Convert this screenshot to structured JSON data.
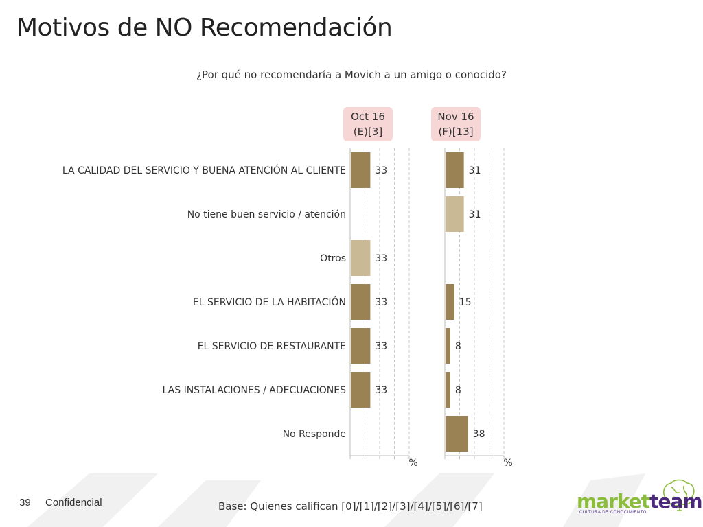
{
  "title": "Motivos de NO Recomendación",
  "question": "¿Por qué no recomendaría a Movich a un amigo o conocido?",
  "periods": [
    {
      "label": "Oct 16",
      "base": "(E)[3]"
    },
    {
      "label": "Nov 16",
      "base": "(F)[13]"
    }
  ],
  "chart_data": {
    "type": "bar",
    "orientation": "horizontal",
    "categories": [
      "LA CALIDAD DEL SERVICIO Y BUENA ATENCIÓN AL CLIENTE",
      "No tiene buen servicio / atención",
      "Otros",
      "EL SERVICIO DE LA HABITACIÓN",
      "EL SERVICIO DE RESTAURANTE",
      "LAS INSTALACIONES / ADECUACIONES",
      "No Responde"
    ],
    "series": [
      {
        "name": "Oct 16",
        "values": [
          33,
          null,
          33,
          33,
          33,
          33,
          null
        ]
      },
      {
        "name": "Nov 16",
        "values": [
          31,
          31,
          null,
          15,
          8,
          8,
          38
        ]
      }
    ],
    "highlight_categories": [
      1,
      2
    ],
    "axis_unit": "%",
    "xlim": [
      0,
      100
    ],
    "grid": true,
    "colors": {
      "main": "#9a8254",
      "highlight": "#c9b994",
      "grid": "#c8c8c8"
    }
  },
  "footer": {
    "page_number": "39",
    "confidential": "Confidencial",
    "base": "Base: Quienes califican [0]/[1]/[2]/[3]/[4]/[5]/[6]/[7]"
  },
  "logo": {
    "part1": "market",
    "part2": "team",
    "tagline": "CULTURA DE CONOCIMIENTO"
  }
}
